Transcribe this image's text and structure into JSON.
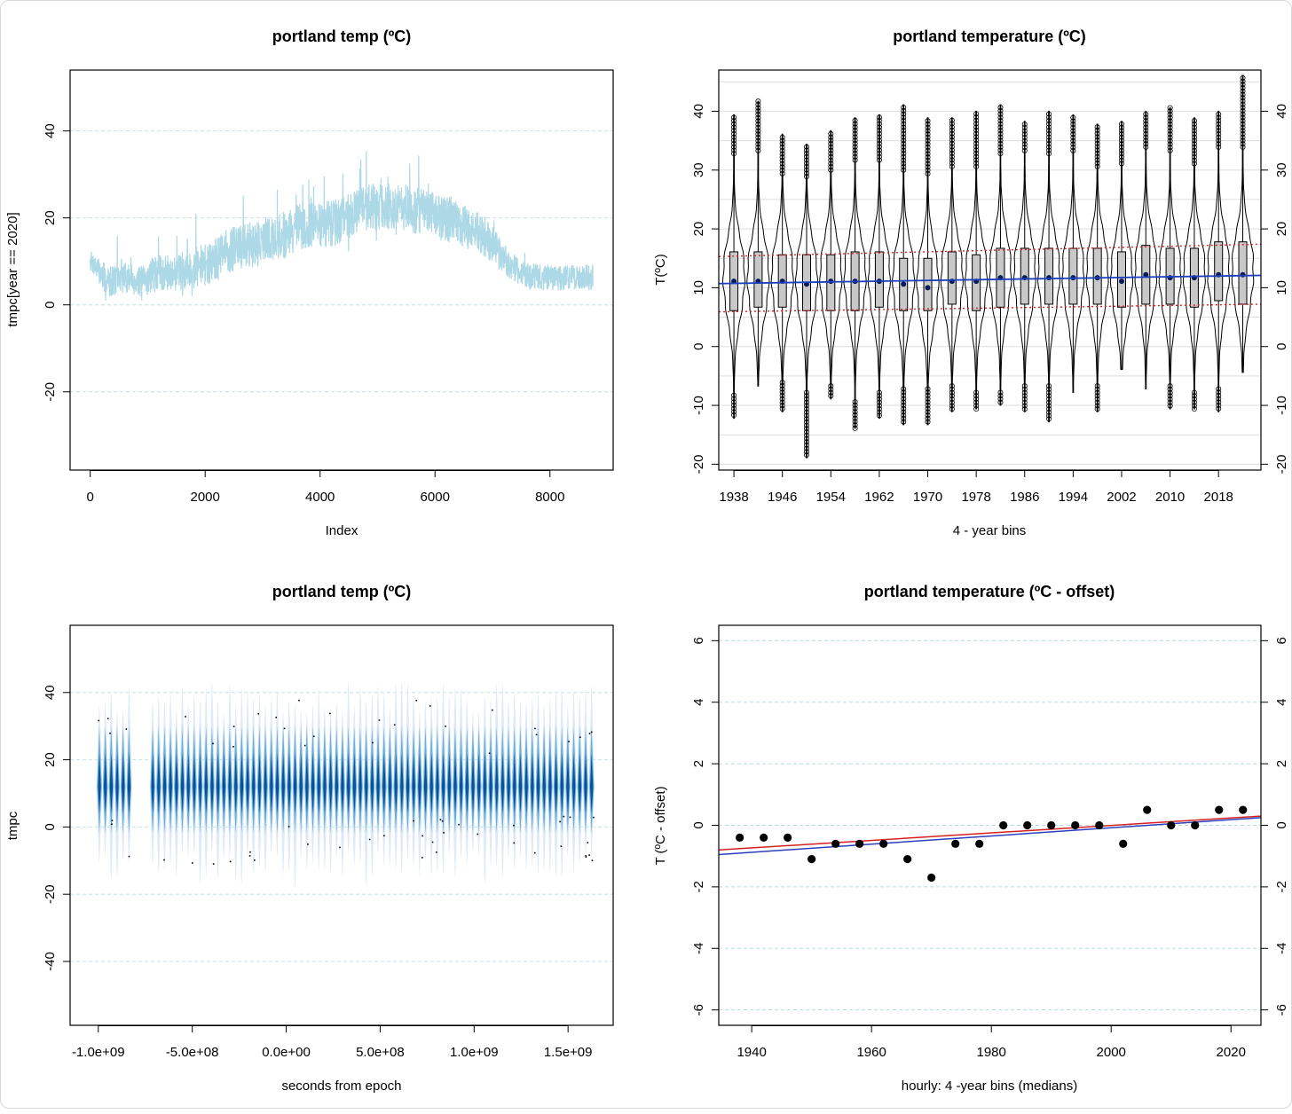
{
  "chart_data": [
    {
      "type": "line",
      "title": "portland temp (ºC)",
      "xlabel": "Index",
      "ylabel": "tmpc[year == 2020]",
      "xlim": [
        -350,
        9100
      ],
      "ylim": [
        -38,
        54
      ],
      "x_ticks": [
        "0",
        "2000",
        "4000",
        "6000",
        "8000"
      ],
      "x_tick_values": [
        0,
        2000,
        4000,
        6000,
        8000
      ],
      "y_ticks": [
        "-20",
        "0",
        "20",
        "40"
      ],
      "y_tick_values": [
        -20,
        0,
        20,
        40
      ],
      "grid": "horizontal dashed",
      "color": "#add8e6",
      "series": [
        {
          "x": [
            0,
            300,
            600,
            900,
            1200,
            1500,
            1800,
            2100,
            2400,
            2700,
            3000,
            3300,
            3600,
            3900,
            4200,
            4500,
            4800,
            5100,
            5400,
            5700,
            6000,
            6300,
            6600,
            6900,
            7200,
            7500,
            7800,
            8100,
            8400,
            8700
          ],
          "values": [
            10,
            5,
            6,
            5,
            7,
            7,
            8,
            9,
            12,
            13,
            14,
            15,
            17,
            18,
            18,
            20,
            22,
            22,
            22,
            21,
            20,
            19,
            17,
            15,
            10,
            7,
            6,
            6,
            6,
            6
          ],
          "amplitude": [
            4,
            6,
            6,
            6,
            7,
            7,
            8,
            8,
            9,
            9,
            9,
            9,
            9,
            9,
            9,
            9,
            9,
            9,
            9,
            9,
            9,
            9,
            8,
            8,
            6,
            5,
            5,
            5,
            5,
            5
          ]
        }
      ]
    },
    {
      "type": "violin",
      "title": "portland temperature (ºC)",
      "xlabel": "4 - year bins",
      "ylabel": "T(ºC)",
      "xlim": [
        1935.5,
        2025
      ],
      "ylim": [
        -21,
        47
      ],
      "x_ticks": [
        "1938",
        "1946",
        "1954",
        "1962",
        "1970",
        "1978",
        "1986",
        "1994",
        "2002",
        "2010",
        "2018"
      ],
      "x_tick_values": [
        1938,
        1946,
        1954,
        1962,
        1970,
        1978,
        1986,
        1994,
        2002,
        2010,
        2018
      ],
      "y_ticks": [
        "-20",
        "-10",
        "0",
        "10",
        "20",
        "30",
        "40"
      ],
      "y_tick_values": [
        -20,
        -10,
        0,
        10,
        20,
        30,
        40
      ],
      "right_axis": true,
      "grid": "horizontal",
      "bins": [
        1938,
        1942,
        1946,
        1950,
        1954,
        1958,
        1962,
        1966,
        1970,
        1974,
        1978,
        1982,
        1986,
        1990,
        1994,
        1998,
        2002,
        2006,
        2010,
        2014,
        2018,
        2022
      ],
      "median": [
        11.1,
        11.1,
        11.1,
        10.6,
        11.1,
        11.1,
        11.1,
        10.6,
        10.0,
        11.1,
        11.1,
        11.7,
        11.7,
        11.7,
        11.7,
        11.7,
        11.1,
        12.2,
        11.7,
        11.7,
        12.2,
        12.2
      ],
      "q1": [
        6.1,
        6.7,
        6.7,
        6.1,
        6.1,
        6.1,
        6.7,
        6.1,
        6.1,
        7.2,
        6.1,
        6.7,
        7.2,
        7.2,
        7.2,
        7.2,
        6.7,
        7.2,
        7.2,
        6.7,
        7.8,
        7.2
      ],
      "q3": [
        16.1,
        16.1,
        15.6,
        15.6,
        15.6,
        16.1,
        16.1,
        15.0,
        15.0,
        16.1,
        15.6,
        16.7,
        16.7,
        16.7,
        16.7,
        16.7,
        16.1,
        17.2,
        16.7,
        16.7,
        17.8,
        17.8
      ],
      "min": [
        -12.2,
        -6.7,
        -11.1,
        -18.9,
        -8.9,
        -13.9,
        -12.2,
        -13.3,
        -13.3,
        -11.1,
        -10.6,
        -10.0,
        -11.1,
        -12.8,
        -7.8,
        -11.1,
        -3.9,
        -7.2,
        -10.6,
        -10.6,
        -11.1,
        -4.4
      ],
      "max": [
        39.4,
        41.7,
        36.1,
        34.4,
        36.7,
        38.9,
        39.4,
        41.1,
        38.9,
        38.9,
        40.0,
        41.1,
        38.3,
        40.0,
        39.4,
        37.8,
        38.3,
        40.0,
        40.6,
        38.9,
        40.0,
        46.1
      ],
      "outlier_low_start": [
        -8.3,
        null,
        -6.1,
        -7.8,
        -6.7,
        -9.4,
        -7.8,
        -7.2,
        -7.2,
        -6.7,
        -7.8,
        -7.8,
        -6.7,
        -6.7,
        null,
        -6.7,
        null,
        null,
        -6.7,
        -7.8,
        -7.2,
        null
      ],
      "outlier_high_start": [
        32.8,
        33.3,
        29.4,
        28.9,
        30.0,
        31.7,
        31.7,
        30.0,
        29.4,
        30.6,
        30.6,
        32.8,
        33.3,
        32.8,
        33.3,
        30.6,
        31.1,
        33.9,
        33.3,
        31.1,
        33.9,
        33.9
      ],
      "mean_line": {
        "color": "#1a3fbf",
        "start": 10.7,
        "end": 12.1
      },
      "reference_lines": {
        "color": "#e02020",
        "lower": [
          5.9,
          7.2
        ],
        "upper": [
          15.3,
          17.4
        ]
      }
    },
    {
      "type": "heatmap",
      "title": "portland temp (ºC)",
      "xlabel": "seconds from epoch",
      "ylabel": "tmpc",
      "xlim": [
        -1150000000.0,
        1740000000.0
      ],
      "ylim": [
        -59,
        60
      ],
      "x_ticks": [
        "-1.0e+09",
        "-5.0e+08",
        "0.0e+00",
        "5.0e+08",
        "1.0e+09",
        "1.5e+09"
      ],
      "x_tick_values": [
        -1000000000,
        -500000000,
        0,
        500000000,
        1000000000,
        1500000000
      ],
      "y_ticks": [
        "-40",
        "-20",
        "0",
        "20",
        "40"
      ],
      "y_tick_values": [
        -40,
        -20,
        0,
        20,
        40
      ],
      "grid": "horizontal dashed",
      "year_range": [
        1938,
        2022
      ],
      "gap_years": [
        1944,
        1947
      ],
      "color_scale": [
        "#deebf7",
        "#6baed6",
        "#08519c"
      ]
    },
    {
      "type": "scatter",
      "title": "portland temperature (ºC - offset)",
      "xlabel": "hourly:  4 -year bins (medians)",
      "ylabel": "T (ºC - offset)",
      "xlim": [
        1934.5,
        2025
      ],
      "ylim": [
        -6.5,
        6.5
      ],
      "x_ticks": [
        "1940",
        "1960",
        "1980",
        "2000",
        "2020"
      ],
      "x_tick_values": [
        1940,
        1960,
        1980,
        2000,
        2020
      ],
      "y_ticks": [
        "-6",
        "-4",
        "-2",
        "0",
        "2",
        "4",
        "6"
      ],
      "y_tick_values": [
        -6,
        -4,
        -2,
        0,
        2,
        4,
        6
      ],
      "right_axis": true,
      "grid": "horizontal dashed",
      "x": [
        1938,
        1942,
        1946,
        1950,
        1954,
        1958,
        1962,
        1966,
        1970,
        1974,
        1978,
        1982,
        1986,
        1990,
        1994,
        1998,
        2002,
        2006,
        2010,
        2014,
        2018,
        2022
      ],
      "y": [
        -0.4,
        -0.4,
        -0.4,
        -1.1,
        -0.6,
        -0.6,
        -0.6,
        -1.1,
        -1.7,
        -0.6,
        -0.6,
        0.0,
        0.0,
        0.0,
        0.0,
        0.0,
        -0.6,
        0.5,
        0.0,
        0.0,
        0.5,
        0.5
      ],
      "fit_lines": [
        {
          "color": "#d62020",
          "x": [
            1934.5,
            2025
          ],
          "y": [
            -0.8,
            0.3
          ]
        },
        {
          "color": "#2a3fc0",
          "x": [
            1934.5,
            2025
          ],
          "y": [
            -0.95,
            0.25
          ]
        }
      ]
    }
  ]
}
